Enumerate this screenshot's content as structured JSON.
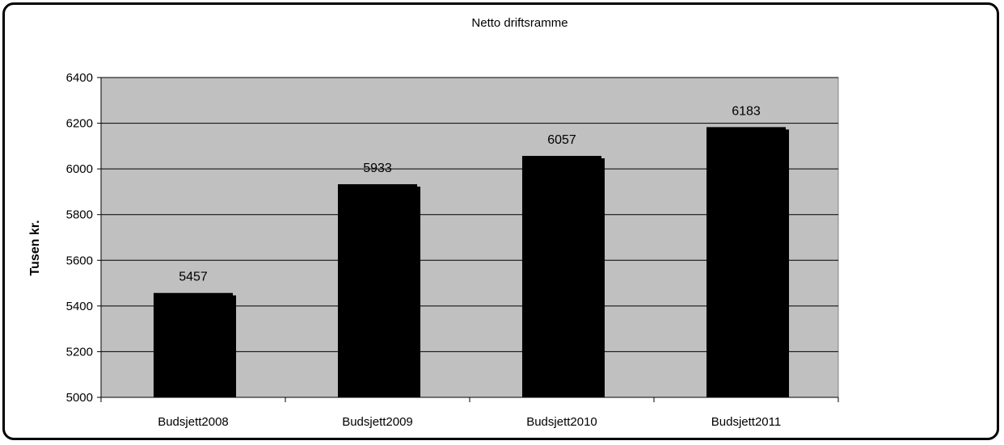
{
  "chart_data": {
    "type": "bar",
    "title": "Netto driftsramme",
    "xlabel": "",
    "ylabel": "Tusen kr.",
    "categories": [
      "Budsjett2008",
      "Budsjett2009",
      "Budsjett2010",
      "Budsjett2011"
    ],
    "values": [
      5457,
      5933,
      6057,
      6183
    ],
    "data_labels": [
      "5457",
      "5933",
      "6057",
      "6183"
    ],
    "ylim": [
      5000,
      6400
    ],
    "yticks": [
      "5000",
      "5200",
      "5400",
      "5600",
      "5800",
      "6000",
      "6200",
      "6400"
    ],
    "grid": true,
    "legend": "none",
    "colors": {
      "bar": "#000000",
      "plot_background": "#c0c0c0",
      "gridline": "#000000"
    }
  }
}
